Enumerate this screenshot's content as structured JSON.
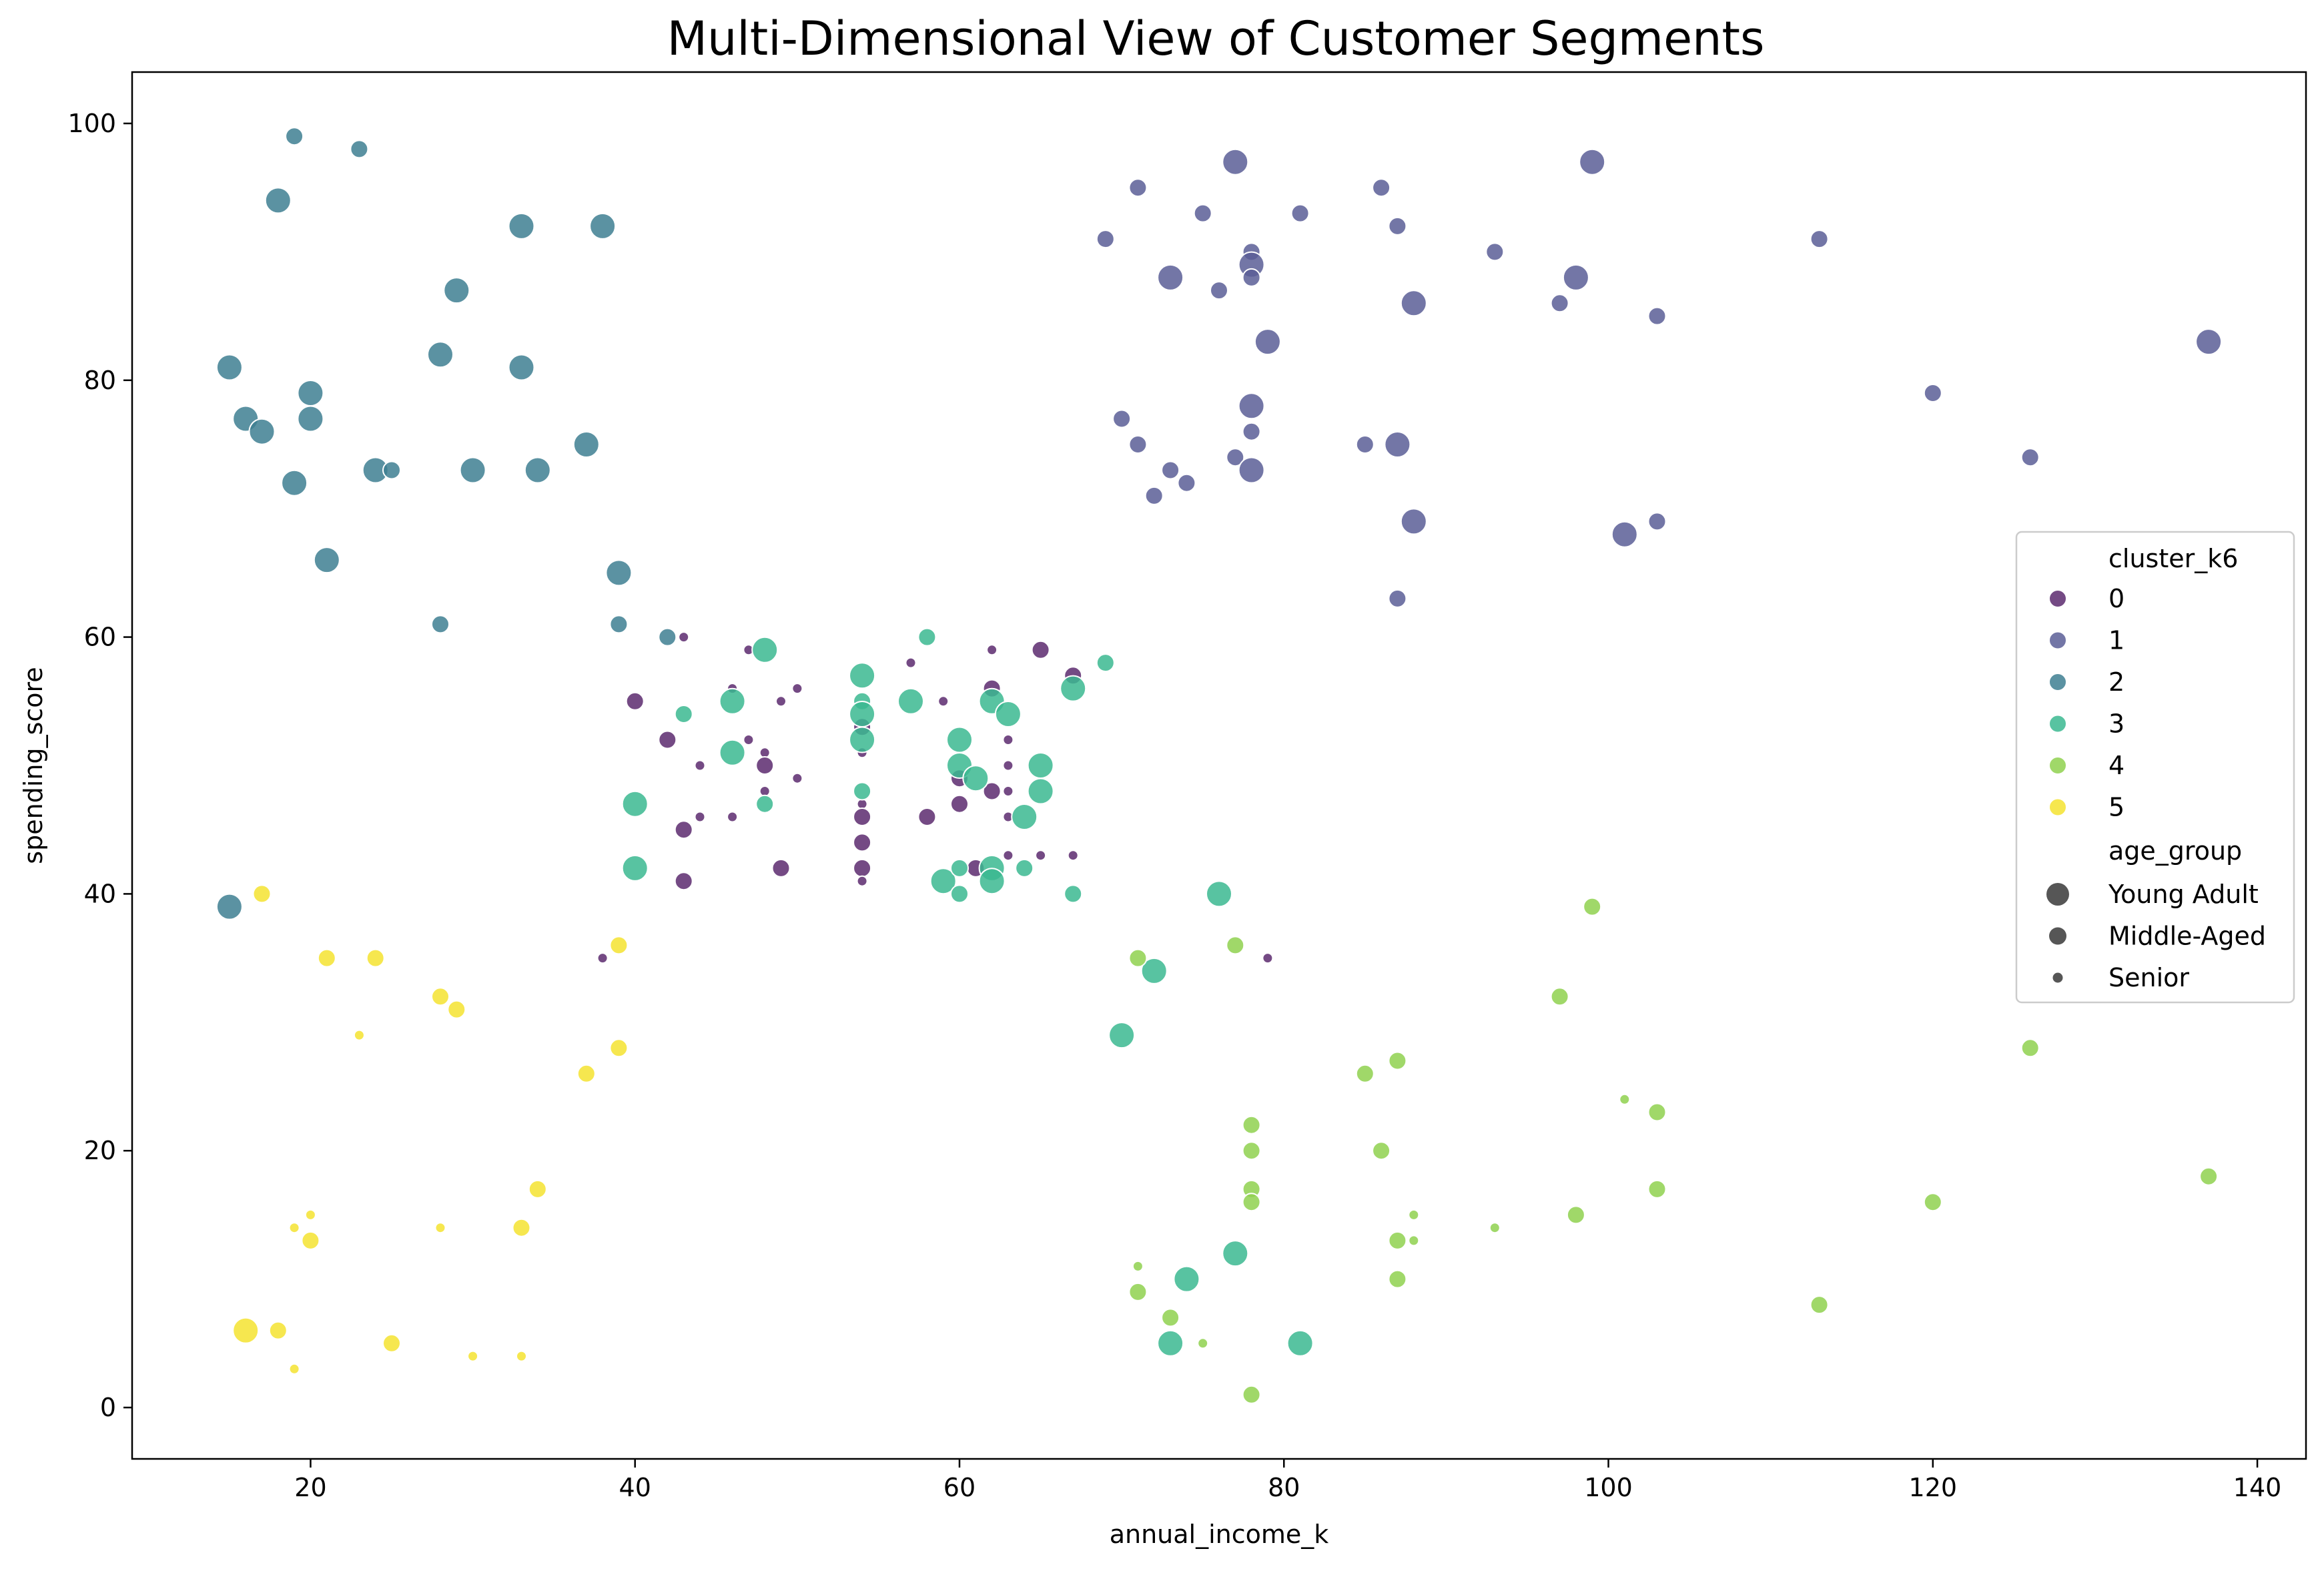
{
  "chart_data": {
    "type": "scatter",
    "title": "Multi-Dimensional View of Customer Segments",
    "xlabel": "annual_income_k",
    "ylabel": "spending_score",
    "xlim": [
      9,
      143
    ],
    "ylim": [
      -4,
      104
    ],
    "xticks": [
      20,
      40,
      60,
      80,
      100,
      120,
      140
    ],
    "yticks": [
      0,
      20,
      40,
      60,
      80,
      100
    ],
    "grid": false,
    "legend": {
      "placement": "right",
      "hue_title": "cluster_k6",
      "size_title": "age_group",
      "size_entries": [
        {
          "label": "Young Adult",
          "size": "large"
        },
        {
          "label": "Middle-Aged",
          "size": "medium"
        },
        {
          "label": "Senior",
          "size": "small"
        }
      ]
    },
    "series": [
      {
        "name": "0",
        "color": "#5c2a6e",
        "points": [
          [
            40,
            55,
            "M"
          ],
          [
            42,
            52,
            "M"
          ],
          [
            43,
            45,
            "M"
          ],
          [
            43,
            41,
            "M"
          ],
          [
            43,
            60,
            "S"
          ],
          [
            44,
            50,
            "S"
          ],
          [
            44,
            46,
            "S"
          ],
          [
            46,
            56,
            "S"
          ],
          [
            46,
            46,
            "S"
          ],
          [
            47,
            52,
            "S"
          ],
          [
            47,
            59,
            "S"
          ],
          [
            48,
            51,
            "S"
          ],
          [
            48,
            50,
            "M"
          ],
          [
            48,
            48,
            "S"
          ],
          [
            49,
            42,
            "M"
          ],
          [
            49,
            55,
            "S"
          ],
          [
            50,
            56,
            "S"
          ],
          [
            50,
            49,
            "S"
          ],
          [
            54,
            53,
            "M"
          ],
          [
            54,
            51,
            "S"
          ],
          [
            54,
            47,
            "S"
          ],
          [
            54,
            46,
            "M"
          ],
          [
            54,
            44,
            "M"
          ],
          [
            54,
            42,
            "M"
          ],
          [
            54,
            41,
            "S"
          ],
          [
            57,
            58,
            "S"
          ],
          [
            58,
            46,
            "M"
          ],
          [
            59,
            55,
            "S"
          ],
          [
            60,
            49,
            "M"
          ],
          [
            60,
            47,
            "M"
          ],
          [
            61,
            42,
            "M"
          ],
          [
            62,
            59,
            "S"
          ],
          [
            62,
            56,
            "M"
          ],
          [
            62,
            48,
            "M"
          ],
          [
            63,
            52,
            "S"
          ],
          [
            63,
            50,
            "S"
          ],
          [
            63,
            48,
            "S"
          ],
          [
            63,
            46,
            "S"
          ],
          [
            63,
            43,
            "S"
          ],
          [
            65,
            59,
            "M"
          ],
          [
            65,
            43,
            "S"
          ],
          [
            67,
            57,
            "M"
          ],
          [
            67,
            43,
            "S"
          ],
          [
            38,
            35,
            "S"
          ],
          [
            79,
            35,
            "S"
          ]
        ]
      },
      {
        "name": "1",
        "color": "#5b5e96",
        "points": [
          [
            69,
            91,
            "M"
          ],
          [
            70,
            77,
            "M"
          ],
          [
            71,
            95,
            "M"
          ],
          [
            71,
            75,
            "M"
          ],
          [
            72,
            71,
            "M"
          ],
          [
            73,
            88,
            "L"
          ],
          [
            73,
            73,
            "M"
          ],
          [
            74,
            72,
            "M"
          ],
          [
            75,
            93,
            "M"
          ],
          [
            76,
            87,
            "M"
          ],
          [
            77,
            97,
            "L"
          ],
          [
            77,
            74,
            "M"
          ],
          [
            78,
            90,
            "M"
          ],
          [
            78,
            89,
            "L"
          ],
          [
            78,
            88,
            "M"
          ],
          [
            78,
            78,
            "L"
          ],
          [
            78,
            76,
            "M"
          ],
          [
            78,
            73,
            "L"
          ],
          [
            79,
            83,
            "L"
          ],
          [
            81,
            93,
            "M"
          ],
          [
            85,
            75,
            "M"
          ],
          [
            86,
            95,
            "M"
          ],
          [
            87,
            92,
            "M"
          ],
          [
            87,
            75,
            "L"
          ],
          [
            87,
            63,
            "M"
          ],
          [
            88,
            86,
            "L"
          ],
          [
            88,
            69,
            "L"
          ],
          [
            93,
            90,
            "M"
          ],
          [
            97,
            86,
            "M"
          ],
          [
            98,
            88,
            "L"
          ],
          [
            99,
            97,
            "L"
          ],
          [
            101,
            68,
            "L"
          ],
          [
            103,
            85,
            "M"
          ],
          [
            103,
            69,
            "M"
          ],
          [
            113,
            91,
            "M"
          ],
          [
            120,
            79,
            "M"
          ],
          [
            126,
            74,
            "M"
          ],
          [
            137,
            83,
            "L"
          ]
        ]
      },
      {
        "name": "2",
        "color": "#3e7f92",
        "points": [
          [
            15,
            81,
            "L"
          ],
          [
            15,
            39,
            "L"
          ],
          [
            16,
            77,
            "L"
          ],
          [
            17,
            76,
            "L"
          ],
          [
            18,
            94,
            "L"
          ],
          [
            19,
            99,
            "M"
          ],
          [
            19,
            72,
            "L"
          ],
          [
            20,
            79,
            "L"
          ],
          [
            20,
            77,
            "L"
          ],
          [
            21,
            66,
            "L"
          ],
          [
            23,
            98,
            "M"
          ],
          [
            24,
            73,
            "L"
          ],
          [
            25,
            73,
            "M"
          ],
          [
            28,
            82,
            "L"
          ],
          [
            28,
            61,
            "M"
          ],
          [
            29,
            87,
            "L"
          ],
          [
            30,
            73,
            "L"
          ],
          [
            33,
            92,
            "L"
          ],
          [
            33,
            81,
            "L"
          ],
          [
            34,
            73,
            "L"
          ],
          [
            37,
            75,
            "L"
          ],
          [
            38,
            92,
            "L"
          ],
          [
            39,
            65,
            "L"
          ],
          [
            39,
            61,
            "M"
          ],
          [
            42,
            60,
            "M"
          ]
        ]
      },
      {
        "name": "3",
        "color": "#3bb890",
        "points": [
          [
            40,
            47,
            "L"
          ],
          [
            40,
            42,
            "L"
          ],
          [
            43,
            54,
            "M"
          ],
          [
            46,
            55,
            "L"
          ],
          [
            46,
            51,
            "L"
          ],
          [
            48,
            59,
            "L"
          ],
          [
            48,
            47,
            "M"
          ],
          [
            54,
            57,
            "L"
          ],
          [
            54,
            55,
            "M"
          ],
          [
            54,
            54,
            "L"
          ],
          [
            54,
            52,
            "L"
          ],
          [
            54,
            48,
            "M"
          ],
          [
            57,
            55,
            "L"
          ],
          [
            58,
            60,
            "M"
          ],
          [
            59,
            41,
            "L"
          ],
          [
            60,
            52,
            "L"
          ],
          [
            60,
            50,
            "L"
          ],
          [
            60,
            42,
            "M"
          ],
          [
            60,
            40,
            "M"
          ],
          [
            61,
            49,
            "L"
          ],
          [
            62,
            55,
            "L"
          ],
          [
            62,
            42,
            "L"
          ],
          [
            62,
            41,
            "L"
          ],
          [
            63,
            54,
            "L"
          ],
          [
            64,
            46,
            "L"
          ],
          [
            64,
            42,
            "M"
          ],
          [
            65,
            50,
            "L"
          ],
          [
            65,
            48,
            "L"
          ],
          [
            67,
            56,
            "L"
          ],
          [
            67,
            40,
            "M"
          ],
          [
            69,
            58,
            "M"
          ],
          [
            70,
            29,
            "L"
          ],
          [
            72,
            34,
            "L"
          ],
          [
            74,
            10,
            "L"
          ],
          [
            76,
            40,
            "L"
          ],
          [
            73,
            5,
            "L"
          ],
          [
            77,
            12,
            "L"
          ],
          [
            81,
            5,
            "L"
          ]
        ]
      },
      {
        "name": "4",
        "color": "#8fd14f",
        "points": [
          [
            71,
            35,
            "M"
          ],
          [
            71,
            11,
            "S"
          ],
          [
            71,
            9,
            "M"
          ],
          [
            73,
            7,
            "M"
          ],
          [
            75,
            5,
            "S"
          ],
          [
            77,
            36,
            "M"
          ],
          [
            78,
            22,
            "M"
          ],
          [
            78,
            20,
            "M"
          ],
          [
            78,
            17,
            "M"
          ],
          [
            78,
            16,
            "M"
          ],
          [
            78,
            1,
            "M"
          ],
          [
            85,
            26,
            "M"
          ],
          [
            86,
            20,
            "M"
          ],
          [
            87,
            27,
            "M"
          ],
          [
            87,
            13,
            "M"
          ],
          [
            87,
            10,
            "M"
          ],
          [
            88,
            15,
            "S"
          ],
          [
            88,
            13,
            "S"
          ],
          [
            93,
            14,
            "S"
          ],
          [
            97,
            32,
            "M"
          ],
          [
            98,
            15,
            "M"
          ],
          [
            99,
            39,
            "M"
          ],
          [
            101,
            24,
            "S"
          ],
          [
            103,
            23,
            "M"
          ],
          [
            103,
            17,
            "M"
          ],
          [
            113,
            8,
            "M"
          ],
          [
            120,
            16,
            "M"
          ],
          [
            126,
            28,
            "M"
          ],
          [
            137,
            18,
            "M"
          ]
        ]
      },
      {
        "name": "5",
        "color": "#f4e330",
        "points": [
          [
            16,
            6,
            "L"
          ],
          [
            17,
            40,
            "M"
          ],
          [
            18,
            6,
            "M"
          ],
          [
            19,
            14,
            "S"
          ],
          [
            19,
            3,
            "S"
          ],
          [
            20,
            15,
            "S"
          ],
          [
            20,
            13,
            "M"
          ],
          [
            21,
            35,
            "M"
          ],
          [
            23,
            29,
            "S"
          ],
          [
            24,
            35,
            "M"
          ],
          [
            25,
            5,
            "M"
          ],
          [
            28,
            32,
            "M"
          ],
          [
            28,
            14,
            "S"
          ],
          [
            29,
            31,
            "M"
          ],
          [
            30,
            4,
            "S"
          ],
          [
            33,
            14,
            "M"
          ],
          [
            33,
            4,
            "S"
          ],
          [
            34,
            17,
            "M"
          ],
          [
            37,
            26,
            "M"
          ],
          [
            39,
            36,
            "M"
          ],
          [
            39,
            28,
            "M"
          ]
        ]
      }
    ]
  }
}
